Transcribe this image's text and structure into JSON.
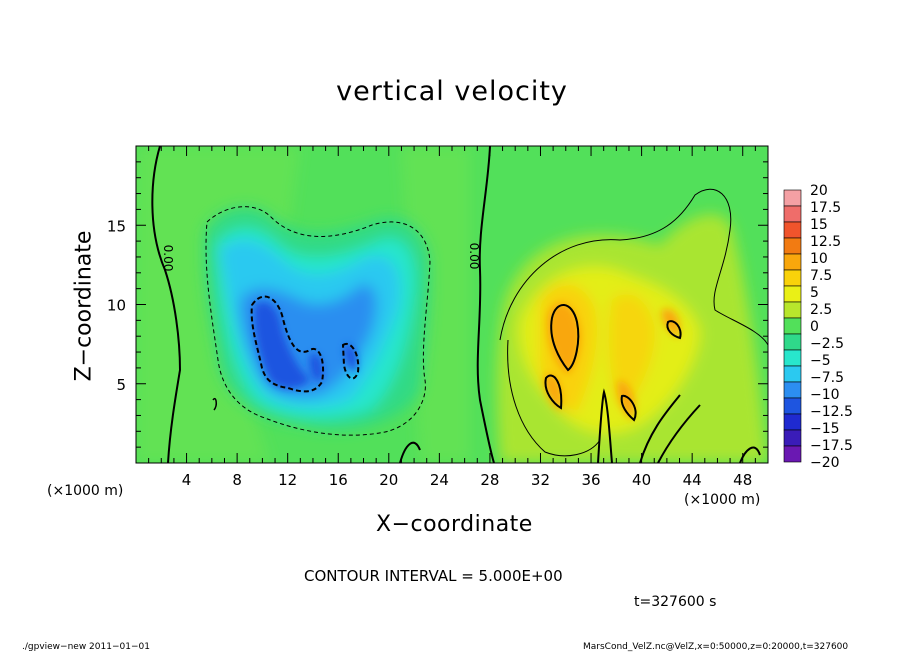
{
  "title": "vertical velocity",
  "chart_data": {
    "type": "heatmap",
    "title": "vertical velocity",
    "xlabel": "X−coordinate",
    "ylabel": "Z−coordinate",
    "x_unit": "(×1000 m)",
    "xlim": [
      0,
      50
    ],
    "ylim": [
      0,
      20
    ],
    "x_ticks": [
      4,
      8,
      12,
      16,
      20,
      24,
      28,
      32,
      36,
      40,
      44,
      48
    ],
    "y_ticks": [
      5,
      10,
      15
    ],
    "zero_contour_labels": [
      "0.00",
      "0.00"
    ],
    "colorbar": {
      "labels": [
        "20",
        "17.5",
        "15",
        "12.5",
        "10",
        "7.5",
        "5",
        "2.5",
        "0",
        "−2.5",
        "−5",
        "−7.5",
        "−10",
        "−12.5",
        "−15",
        "−17.5",
        "−20"
      ],
      "colors": [
        "#f4a0a4",
        "#ef6d6a",
        "#f0542c",
        "#f27b12",
        "#f9a70c",
        "#f9d20a",
        "#eaf016",
        "#b8e62c",
        "#52e05a",
        "#2fd98a",
        "#28e6cc",
        "#2bc9f0",
        "#2c8ef0",
        "#1e55e0",
        "#1f2ad0",
        "#3a1cb8",
        "#6a18b2"
      ]
    },
    "contour_interval": "CONTOUR INTERVAL = 5.000E+00",
    "time": "t=327600 s"
  },
  "footer": {
    "left": "./gpview−new   2011−01−01",
    "right": "MarsCond_VelZ.nc@VelZ,x=0:50000,z=0:20000,t=327600"
  }
}
